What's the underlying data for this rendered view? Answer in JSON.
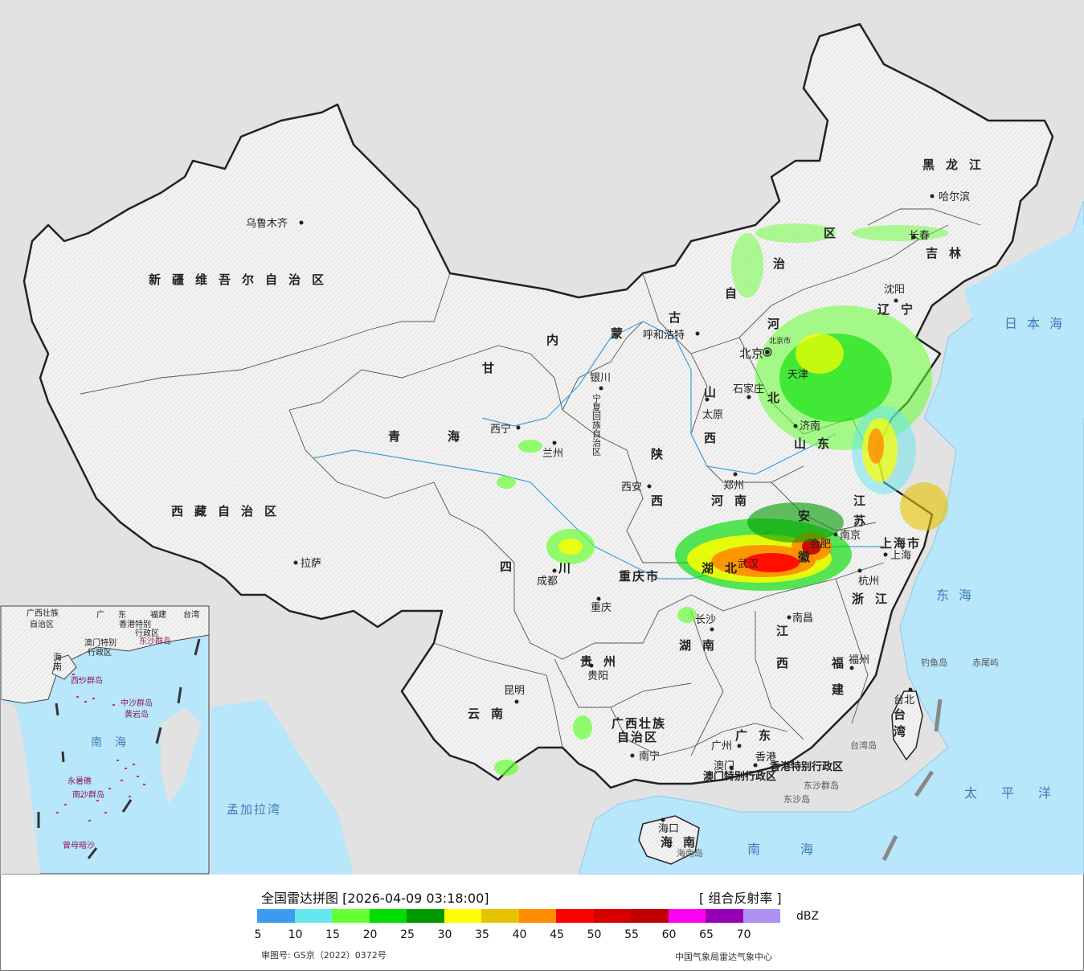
{
  "legend": {
    "title": "全国雷达拼图 [2026-04-09 03:18:00]",
    "product": "[ 组合反射率 ]",
    "unit": "dBZ",
    "license": "审图号: GS京（2022）0372号",
    "source": "中国气象局雷达气象中心",
    "scale": [
      {
        "value": "5",
        "color": "#3c9bf0"
      },
      {
        "value": "10",
        "color": "#66e6ee"
      },
      {
        "value": "15",
        "color": "#66ff33"
      },
      {
        "value": "20",
        "color": "#00dd00"
      },
      {
        "value": "25",
        "color": "#009900"
      },
      {
        "value": "30",
        "color": "#ffff00"
      },
      {
        "value": "35",
        "color": "#e6c300"
      },
      {
        "value": "40",
        "color": "#ff8c00"
      },
      {
        "value": "45",
        "color": "#ff0000"
      },
      {
        "value": "50",
        "color": "#d70000"
      },
      {
        "value": "55",
        "color": "#c00000"
      },
      {
        "value": "60",
        "color": "#ff00f0"
      },
      {
        "value": "65",
        "color": "#9600b4"
      },
      {
        "value": "70",
        "color": "#ad90f0"
      }
    ]
  },
  "regions": {
    "xinjiang": "新疆维吾尔自治区",
    "xizang": "西藏自治区",
    "qinghai_1": "青",
    "qinghai_2": "海",
    "gansu": "甘",
    "neimenggu": [
      "内",
      "蒙",
      "古",
      "自",
      "治",
      "区"
    ],
    "heilongjiang": "黑龙江",
    "jilin": "吉林",
    "liaoning": "辽宁",
    "hebei_1": "河",
    "hebei_2": "北",
    "shanxi_1": "山",
    "shanxi_2": "西",
    "shaanxi_1": "陕",
    "shaanxi_2": "西",
    "ningxia": "宁夏回族自治区",
    "shandong": "山东",
    "henan": "河南",
    "jiangsu_1": "江",
    "jiangsu_2": "苏",
    "anhui_1": "安",
    "anhui_2": "徽",
    "shanghai": "上海市",
    "hubei": "湖北",
    "sichuan_1": "四",
    "sichuan_2": "川",
    "chongqing": "重庆市",
    "zhejiang": "浙江",
    "jiangxi_1": "江",
    "jiangxi_2": "西",
    "hunan": "湖南",
    "guizhou": "贵州",
    "yunnan": "云南",
    "guangxi_1": "广西壮族",
    "guangxi_2": "自治区",
    "guangdong": "广东",
    "fujian_1": "福",
    "fujian_2": "建",
    "taiwan_1": "台",
    "taiwan_2": "湾",
    "hainan_1": "海",
    "hainan_2": "南",
    "hongkong": "香港特别行政区",
    "macao": "澳门特别行政区",
    "tianjin": "天津",
    "beijing_city": "北京",
    "beijing_small": "北京市"
  },
  "cities": {
    "urumqi": "乌鲁木齐",
    "lhasa": "拉萨",
    "xining": "西宁",
    "lanzhou": "兰州",
    "yinchuan": "银川",
    "hohhot": "呼和浩特",
    "beijing": "北京",
    "shijiazhuang": "石家庄",
    "taiyuan": "太原",
    "jinan": "济南",
    "zhengzhou": "郑州",
    "xian": "西安",
    "nanjing": "南京",
    "hefei": "合肥",
    "wuhan": "武汉",
    "shanghai": "上海",
    "hangzhou": "杭州",
    "chengdu": "成都",
    "chongqing": "重庆",
    "changsha": "长沙",
    "nanchang": "南昌",
    "fuzhou": "福州",
    "guiyang": "贵阳",
    "kunming": "昆明",
    "nanning": "南宁",
    "guangzhou": "广州",
    "hongkong": "香港",
    "macao": "澳门",
    "haikou": "海口",
    "taibei": "台北",
    "shenyang": "沈阳",
    "changchun": "长春",
    "harbin": "哈尔滨"
  },
  "seas": {
    "japan_sea": "日本海",
    "east_sea": "东海",
    "pacific": "太平洋",
    "south_sea": "南海",
    "bengal": "孟加拉湾",
    "inset_sea": "南海"
  },
  "islands": {
    "diaoyu": "钓鱼岛",
    "chiwei": "赤尾屿",
    "taiwan_island": "台湾岛",
    "dongsha_qundao": "东沙群岛",
    "dongsha_dao": "东沙岛",
    "hainan_island": "海南岛"
  },
  "inset": {
    "guangxi": "广西壮族",
    "zizhiqu": "自治区",
    "guang": "广",
    "dong": "东",
    "fujian": "福建",
    "taiwan": "台湾",
    "hk": "香港特别",
    "hk2": "行政区",
    "macao": "澳门特别",
    "macao2": "行政区",
    "dongsha": "东沙群岛",
    "hai": "海",
    "nan": "南",
    "xisha": "西沙群岛",
    "zhongsha": "中沙群岛",
    "huangyan": "黄岩岛",
    "nansha": "南沙群岛",
    "yongshu": "永暑礁",
    "zengmu": "曾母暗沙",
    "nanhai": "南海"
  }
}
